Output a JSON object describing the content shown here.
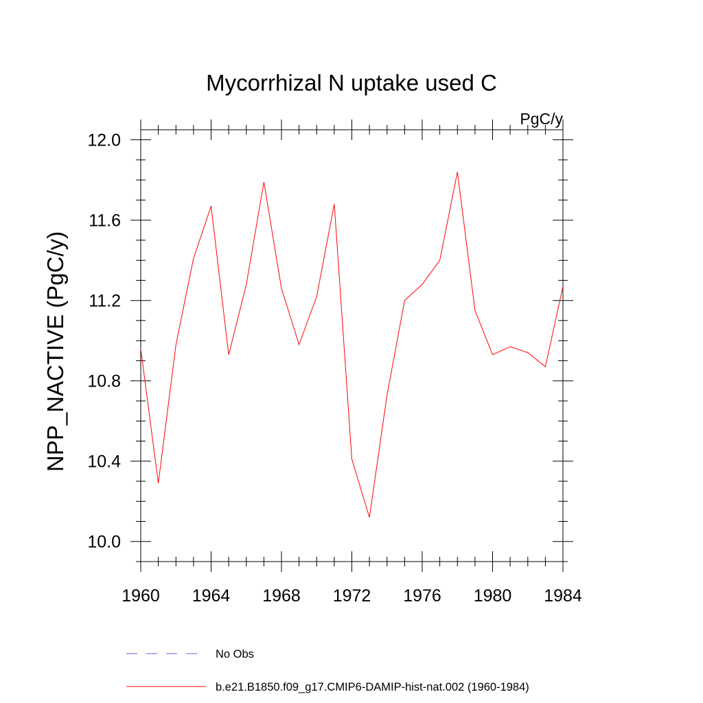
{
  "chart_data": {
    "type": "line",
    "title": "Mycorrhizal N uptake used C",
    "units_label": "PgC/y",
    "ylabel": "NPP_NACTIVE  (PgC/y)",
    "xlabel": "",
    "xlim": [
      1960,
      1984
    ],
    "ylim": [
      9.9,
      12.05
    ],
    "x_ticks": [
      1960,
      1964,
      1968,
      1972,
      1976,
      1980,
      1984
    ],
    "x_tick_labels": [
      "1960",
      "1964",
      "1968",
      "1972",
      "1976",
      "1980",
      "1984"
    ],
    "y_ticks": [
      10.0,
      10.4,
      10.8,
      11.2,
      11.6,
      12.0
    ],
    "y_tick_labels": [
      "10.0",
      "10.4",
      "10.8",
      "11.2",
      "11.6",
      "12.0"
    ],
    "grid": false,
    "legend_position": "bottom",
    "series": [
      {
        "name": "b.e21.B1850.f09_g17.CMIP6-DAMIP-hist-nat.002 (1960-1984)",
        "color": "#ff0000",
        "style": "solid",
        "x": [
          1960,
          1961,
          1962,
          1963,
          1964,
          1965,
          1966,
          1967,
          1968,
          1969,
          1970,
          1971,
          1972,
          1973,
          1974,
          1975,
          1976,
          1977,
          1978,
          1979,
          1980,
          1981,
          1982,
          1983,
          1984
        ],
        "values": [
          10.96,
          10.29,
          10.98,
          11.41,
          11.67,
          10.93,
          11.28,
          11.79,
          11.26,
          10.98,
          11.22,
          11.68,
          10.41,
          10.12,
          10.73,
          11.2,
          11.28,
          11.4,
          11.84,
          11.15,
          10.93,
          10.97,
          10.94,
          10.87,
          11.27
        ]
      }
    ],
    "legend": [
      {
        "label": "No Obs",
        "color": "#6a5acd",
        "style": "dashed"
      },
      {
        "label": "b.e21.B1850.f09_g17.CMIP6-DAMIP-hist-nat.002 (1960-1984)",
        "color": "#ff0000",
        "style": "solid"
      }
    ]
  }
}
